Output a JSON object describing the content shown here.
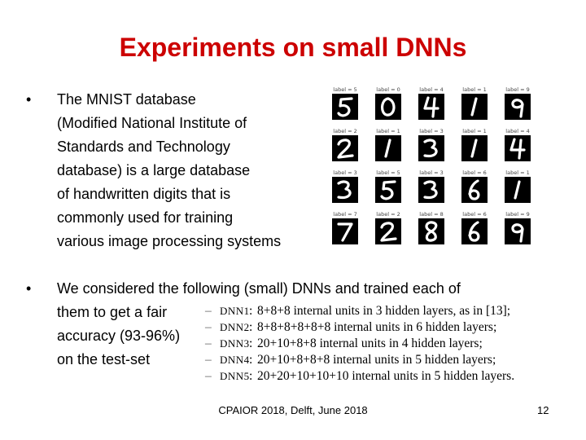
{
  "title": "Experiments on small DNNs",
  "bullet1": {
    "marker": "•",
    "lines": [
      "The MNIST database",
      "(Modified National Institute of",
      "Standards and Technology",
      "database) is a large database",
      "of handwritten digits that is",
      "commonly used for training",
      "various image processing systems"
    ]
  },
  "mnist_grid": {
    "cells": [
      {
        "label": "label = 5",
        "digit": "5"
      },
      {
        "label": "label = 0",
        "digit": "0"
      },
      {
        "label": "label = 4",
        "digit": "4"
      },
      {
        "label": "label = 1",
        "digit": "1"
      },
      {
        "label": "label = 9",
        "digit": "9"
      },
      {
        "label": "label = 2",
        "digit": "2"
      },
      {
        "label": "label = 1",
        "digit": "1"
      },
      {
        "label": "label = 3",
        "digit": "3"
      },
      {
        "label": "label = 1",
        "digit": "1"
      },
      {
        "label": "label = 4",
        "digit": "4"
      },
      {
        "label": "label = 3",
        "digit": "3"
      },
      {
        "label": "label = 5",
        "digit": "5"
      },
      {
        "label": "label = 3",
        "digit": "3"
      },
      {
        "label": "label = 6",
        "digit": "6"
      },
      {
        "label": "label = 1",
        "digit": "1"
      },
      {
        "label": "label = 7",
        "digit": "7"
      },
      {
        "label": "label = 2",
        "digit": "2"
      },
      {
        "label": "label = 8",
        "digit": "8"
      },
      {
        "label": "label = 6",
        "digit": "6"
      },
      {
        "label": "label = 9",
        "digit": "9"
      }
    ]
  },
  "bullet2": {
    "marker": "•",
    "lines": [
      "We considered the following (small) DNNs and trained each of",
      "them to get a fair",
      "accuracy (93-96%)",
      "on the test-set"
    ]
  },
  "dnns": [
    {
      "dash": "–",
      "name": "DNN1",
      "colon": ":",
      "desc": "8+8+8 internal units in 3 hidden layers, as in [13];"
    },
    {
      "dash": "–",
      "name": "DNN2",
      "colon": ":",
      "desc": "8+8+8+8+8+8 internal units in 6 hidden layers;"
    },
    {
      "dash": "–",
      "name": "DNN3",
      "colon": ":",
      "desc": "20+10+8+8 internal units in 4 hidden layers;"
    },
    {
      "dash": "–",
      "name": "DNN4",
      "colon": ":",
      "desc": "20+10+8+8+8 internal units in 5 hidden layers;"
    },
    {
      "dash": "–",
      "name": "DNN5",
      "colon": ":",
      "desc": "20+20+10+10+10 internal units in 5 hidden layers."
    }
  ],
  "footer": "CPAIOR 2018, Delft, June 2018",
  "page_number": "12"
}
